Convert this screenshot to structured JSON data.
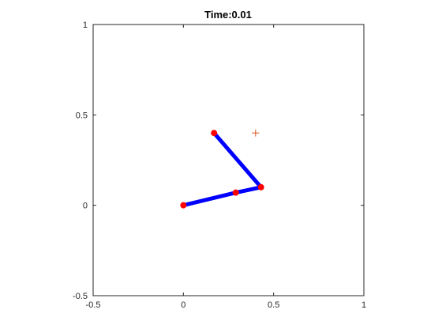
{
  "chart_data": {
    "type": "line",
    "title": "Time:0.01",
    "xlabel": "",
    "ylabel": "",
    "xlim": [
      -0.5,
      1
    ],
    "ylim": [
      -0.5,
      1
    ],
    "grid": false,
    "x_ticks": [
      {
        "value": -0.5,
        "label": "-0.5"
      },
      {
        "value": 0,
        "label": "0"
      },
      {
        "value": 0.5,
        "label": "0.5"
      },
      {
        "value": 1,
        "label": "1"
      }
    ],
    "y_ticks": [
      {
        "value": -0.5,
        "label": "-0.5"
      },
      {
        "value": 0,
        "label": "0"
      },
      {
        "value": 0.5,
        "label": "0.5"
      },
      {
        "value": 1,
        "label": "1"
      }
    ],
    "series": [
      {
        "type": "line",
        "color": "#0000ff",
        "x": [
          0,
          0.29,
          0.43,
          0.17
        ],
        "y": [
          0,
          0.07,
          0.1,
          0.4
        ]
      },
      {
        "type": "scatter",
        "marker": "circle",
        "color": "#ff0000",
        "x": [
          0,
          0.29,
          0.43,
          0.17
        ],
        "y": [
          0,
          0.07,
          0.1,
          0.4
        ]
      },
      {
        "type": "scatter",
        "marker": "plus",
        "color": "#d95319",
        "x": [
          0.4
        ],
        "y": [
          0.4
        ]
      }
    ]
  }
}
